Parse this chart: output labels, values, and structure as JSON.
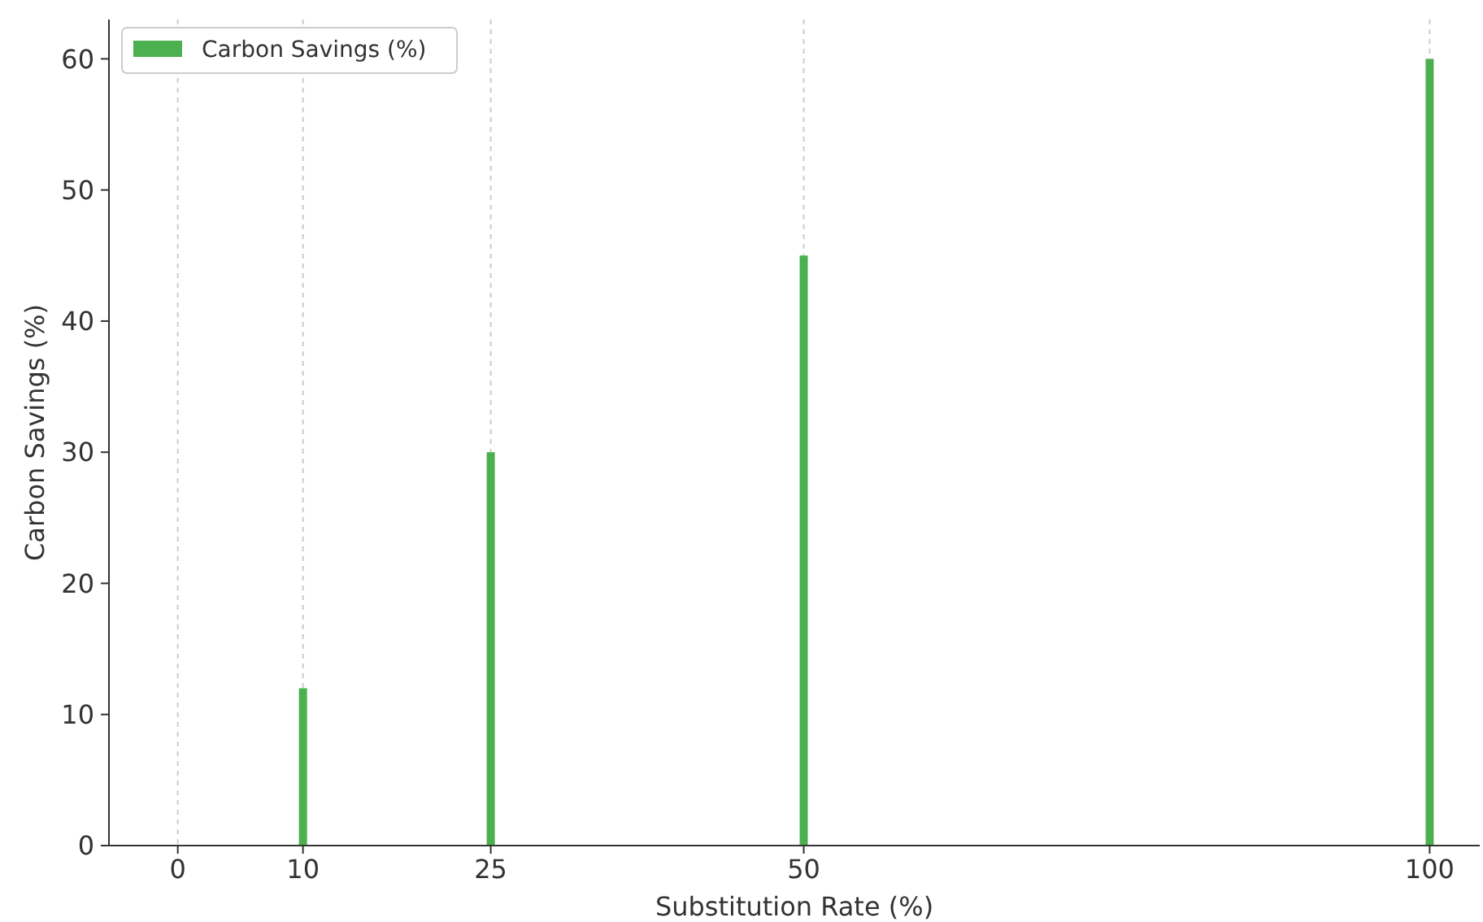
{
  "chart_data": {
    "type": "bar",
    "xlabel": "Substitution Rate (%)",
    "ylabel": "Carbon Savings (%)",
    "x": [
      10,
      25,
      50,
      100
    ],
    "series": [
      {
        "name": "Carbon Savings (%)",
        "color": "#4caf50",
        "values": [
          12,
          30,
          45,
          60
        ]
      }
    ],
    "xlim": [
      -5.5,
      104
    ],
    "xticks": [
      0,
      10,
      25,
      50,
      100
    ],
    "ylim": [
      0,
      63
    ],
    "yticks": [
      0,
      10,
      20,
      30,
      40,
      50,
      60
    ],
    "grid": "x",
    "legend": "top left"
  }
}
